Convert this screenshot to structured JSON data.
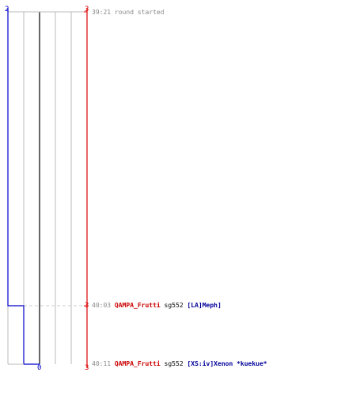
{
  "colors": {
    "team_left": "#0000cc",
    "team_right": "#dd0000",
    "grid": "#bbbbbb",
    "center": "#666666",
    "dashed": "#cccccc",
    "time_text": "#8a8a8a",
    "killer_text": "#cc0000",
    "victim_text": "#000099"
  },
  "scores": {
    "left_top": "2",
    "right_top": "3",
    "right_mid": "3",
    "center_bottom": "0",
    "right_bottom": "3"
  },
  "events": [
    {
      "time": "39:21",
      "message": "round started"
    },
    {
      "time": "40:03",
      "killer": "QAMPA_Frutti",
      "weapon": "sg552",
      "victim": "[LA]Meph]"
    },
    {
      "time": "40:11",
      "killer": "QAMPA_Frutti",
      "weapon": "sg552",
      "victim": "[XS:iv]Xenon *kuekue*"
    }
  ]
}
